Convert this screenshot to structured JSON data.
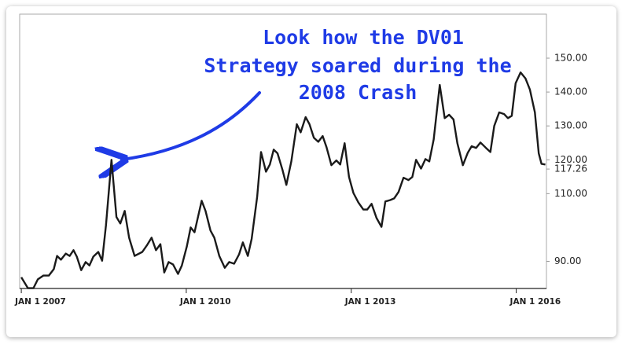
{
  "chart_data": {
    "type": "line",
    "annotation": [
      "Look how the DV01",
      "Strategy soared during the",
      "2008 Crash"
    ],
    "x": [
      2007.0,
      2007.12,
      2007.22,
      2007.3,
      2007.4,
      2007.5,
      2007.59,
      2007.65,
      2007.72,
      2007.81,
      2007.88,
      2007.95,
      2008.01,
      2008.09,
      2008.17,
      2008.24,
      2008.31,
      2008.4,
      2008.47,
      2008.54,
      2008.64,
      2008.73,
      2008.8,
      2008.88,
      2008.96,
      2009.06,
      2009.2,
      2009.29,
      2009.37,
      2009.45,
      2009.53,
      2009.6,
      2009.68,
      2009.76,
      2009.85,
      2009.92,
      2010.01,
      2010.08,
      2010.15,
      2010.28,
      2010.35,
      2010.44,
      2010.51,
      2010.6,
      2010.7,
      2010.78,
      2010.87,
      2010.96,
      2011.03,
      2011.12,
      2011.19,
      2011.29,
      2011.36,
      2011.45,
      2011.52,
      2011.59,
      2011.66,
      2011.75,
      2011.82,
      2011.91,
      2012.01,
      2012.08,
      2012.17,
      2012.24,
      2012.32,
      2012.4,
      2012.48,
      2012.55,
      2012.64,
      2012.73,
      2012.8,
      2012.88,
      2012.96,
      2013.04,
      2013.13,
      2013.22,
      2013.29,
      2013.37,
      2013.46,
      2013.55,
      2013.62,
      2013.71,
      2013.78,
      2013.86,
      2013.95,
      2014.04,
      2014.11,
      2014.18,
      2014.27,
      2014.35,
      2014.42,
      2014.5,
      2014.61,
      2014.7,
      2014.78,
      2014.86,
      2014.93,
      2015.03,
      2015.12,
      2015.19,
      2015.27,
      2015.35,
      2015.45,
      2015.53,
      2015.6,
      2015.69,
      2015.78,
      2015.85,
      2015.92,
      2015.99,
      2016.08,
      2016.17,
      2016.25,
      2016.34,
      2016.41,
      2016.46,
      2016.53
    ],
    "series": [
      {
        "color": "#1a1a1a",
        "values": [
          85.3,
          82.1,
          82.1,
          84.7,
          85.8,
          85.8,
          87.7,
          91.6,
          90.5,
          92.3,
          91.6,
          93.3,
          91.4,
          87.4,
          89.8,
          88.8,
          91.4,
          92.8,
          90.2,
          100.7,
          120.0,
          103.1,
          101.2,
          104.9,
          97.0,
          91.6,
          92.8,
          94.9,
          97.0,
          93.3,
          95.1,
          86.7,
          89.8,
          89.1,
          86.3,
          88.8,
          94.4,
          100.0,
          98.6,
          107.9,
          104.9,
          99.1,
          97.0,
          91.6,
          88.1,
          89.8,
          89.3,
          92.1,
          95.6,
          91.6,
          96.7,
          109.1,
          122.3,
          116.5,
          118.6,
          123.0,
          121.9,
          117.0,
          112.6,
          119.5,
          130.5,
          128.1,
          132.6,
          130.5,
          126.5,
          125.3,
          127.0,
          123.7,
          118.4,
          119.8,
          118.6,
          124.9,
          114.9,
          110.2,
          107.4,
          105.3,
          105.3,
          107.0,
          102.8,
          100.2,
          107.7,
          108.1,
          108.6,
          110.5,
          114.7,
          114.0,
          114.9,
          120.0,
          117.4,
          120.2,
          119.5,
          126.0,
          142.1,
          132.3,
          133.3,
          131.9,
          124.9,
          118.4,
          122.1,
          124.0,
          123.5,
          125.1,
          123.5,
          122.3,
          130.0,
          134.0,
          133.5,
          132.3,
          133.0,
          142.6,
          145.8,
          144.0,
          140.7,
          134.0,
          121.9,
          118.8,
          118.6
        ]
      }
    ],
    "xlim": [
      2006.97,
      2016.55
    ],
    "ylim": [
      82,
      163
    ],
    "xticks": [
      {
        "value": 2007,
        "label": "JAN 1 2007"
      },
      {
        "value": 2010,
        "label": "JAN 1 2010"
      },
      {
        "value": 2013,
        "label": "JAN 1 2013"
      },
      {
        "value": 2016,
        "label": "JAN 1 2016"
      }
    ],
    "yticks": [
      {
        "value": 90,
        "label": "90.00"
      },
      {
        "value": 110,
        "label": "110.00"
      },
      117.26,
      {
        "value": 120,
        "label": "120.00"
      },
      {
        "value": 130,
        "label": "130.00"
      },
      {
        "value": 140,
        "label": "140.00"
      },
      {
        "value": 150,
        "label": "150.00"
      }
    ]
  }
}
